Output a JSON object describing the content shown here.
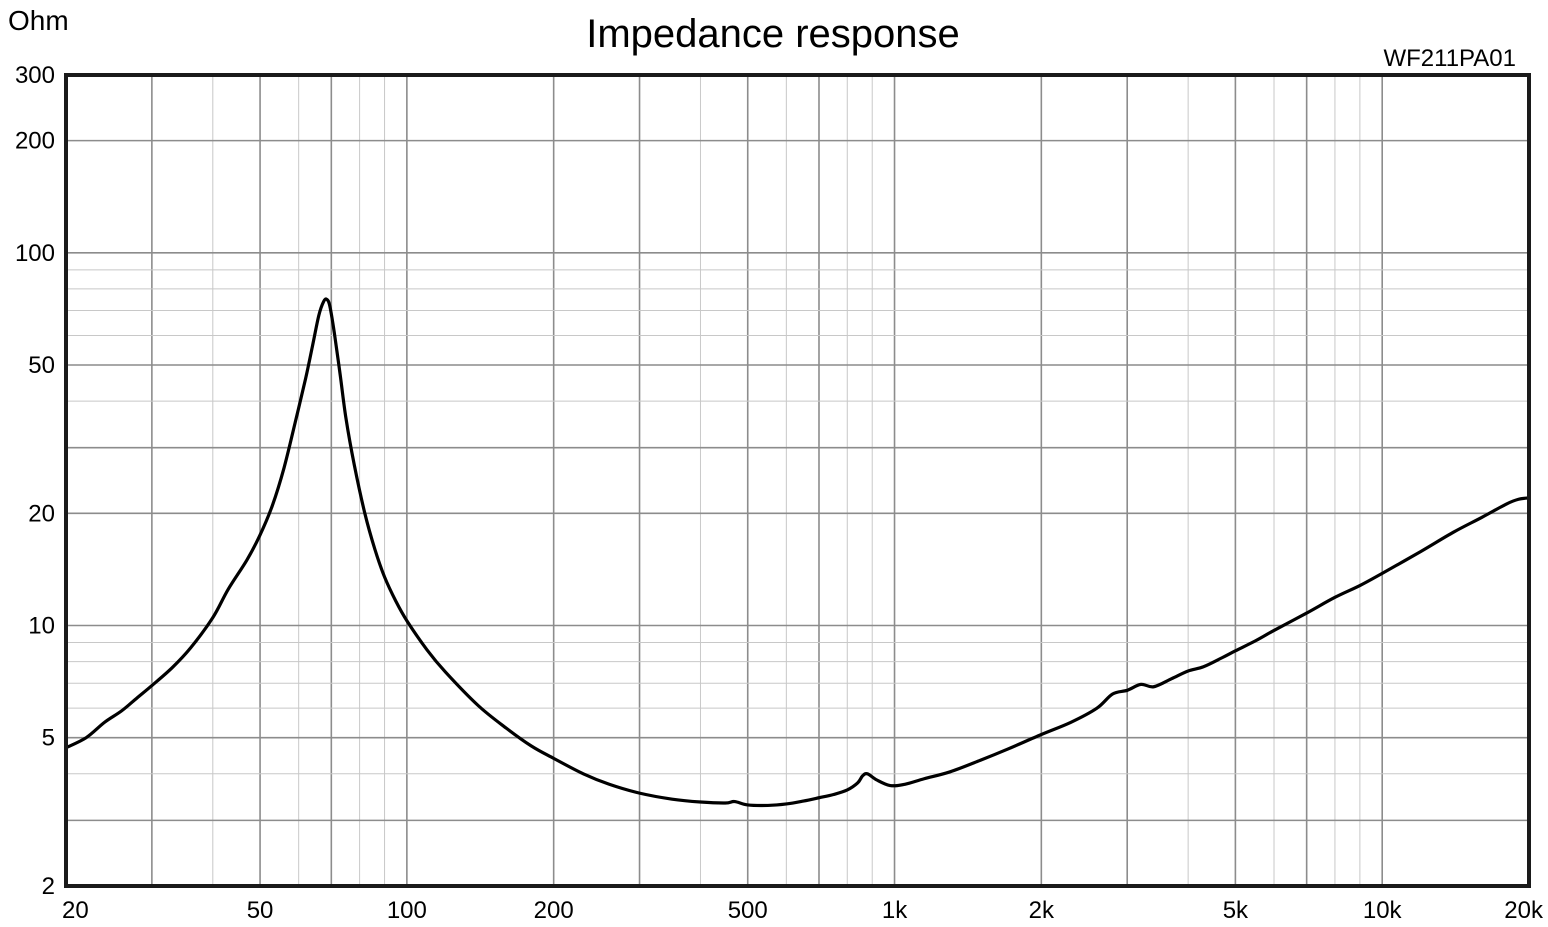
{
  "chart_data": {
    "type": "line",
    "title": "Impedance response",
    "subtitle": "WF211PA01",
    "ylabel": "Ohm",
    "xlabel": "",
    "x_scale": "log",
    "y_scale": "log",
    "xlim": [
      20,
      20000
    ],
    "ylim": [
      2,
      300
    ],
    "grid": true,
    "x_ticks": [
      {
        "value": 20,
        "label": "20"
      },
      {
        "value": 50,
        "label": "50"
      },
      {
        "value": 100,
        "label": "100"
      },
      {
        "value": 200,
        "label": "200"
      },
      {
        "value": 500,
        "label": "500"
      },
      {
        "value": 1000,
        "label": "1k"
      },
      {
        "value": 2000,
        "label": "2k"
      },
      {
        "value": 5000,
        "label": "5k"
      },
      {
        "value": 10000,
        "label": "10k"
      },
      {
        "value": 20000,
        "label": "20k"
      }
    ],
    "y_ticks": [
      {
        "value": 2,
        "label": "2"
      },
      {
        "value": 5,
        "label": "5"
      },
      {
        "value": 10,
        "label": "10"
      },
      {
        "value": 20,
        "label": "20"
      },
      {
        "value": 50,
        "label": "50"
      },
      {
        "value": 100,
        "label": "100"
      },
      {
        "value": 200,
        "label": "200"
      },
      {
        "value": 300,
        "label": "300"
      }
    ],
    "colors": {
      "curve": "#000000",
      "major_grid": "#8c8c8c",
      "minor_grid": "#c8c8c8",
      "frame": "#1a1a1a"
    },
    "series": [
      {
        "x": [
          20,
          22,
          24,
          26,
          28,
          30,
          33,
          36,
          40,
          43,
          47,
          50,
          53,
          56,
          59,
          62,
          64,
          66,
          67.5,
          68.5,
          69.5,
          71,
          73,
          75,
          78,
          82,
          86,
          90,
          95,
          100,
          110,
          120,
          140,
          160,
          180,
          200,
          230,
          260,
          300,
          350,
          400,
          450,
          470,
          500,
          550,
          600,
          650,
          700,
          750,
          800,
          840,
          860,
          880,
          920,
          980,
          1050,
          1150,
          1300,
          1500,
          1700,
          2000,
          2300,
          2600,
          2800,
          3000,
          3200,
          3400,
          3700,
          4000,
          4300,
          4700,
          5000,
          5500,
          6000,
          7000,
          8000,
          9000,
          10000,
          12000,
          14000,
          16000,
          18000,
          19000,
          20000
        ],
        "y": [
          4.7,
          5.0,
          5.5,
          5.9,
          6.4,
          6.9,
          7.7,
          8.7,
          10.5,
          12.5,
          15.0,
          17.5,
          21.0,
          26.5,
          35.0,
          46.0,
          56.0,
          68.0,
          74.0,
          75.0,
          72.0,
          61.0,
          47.0,
          36.0,
          27.0,
          20.0,
          16.0,
          13.5,
          11.6,
          10.3,
          8.6,
          7.5,
          6.1,
          5.3,
          4.75,
          4.4,
          4.0,
          3.75,
          3.55,
          3.42,
          3.36,
          3.34,
          3.37,
          3.3,
          3.29,
          3.32,
          3.38,
          3.45,
          3.52,
          3.62,
          3.78,
          3.95,
          4.0,
          3.85,
          3.72,
          3.75,
          3.88,
          4.05,
          4.35,
          4.65,
          5.1,
          5.5,
          6.0,
          6.55,
          6.7,
          6.95,
          6.85,
          7.2,
          7.55,
          7.75,
          8.2,
          8.55,
          9.1,
          9.7,
          10.8,
          11.9,
          12.8,
          13.8,
          15.8,
          17.8,
          19.5,
          21.2,
          21.8,
          22.0
        ]
      }
    ]
  }
}
